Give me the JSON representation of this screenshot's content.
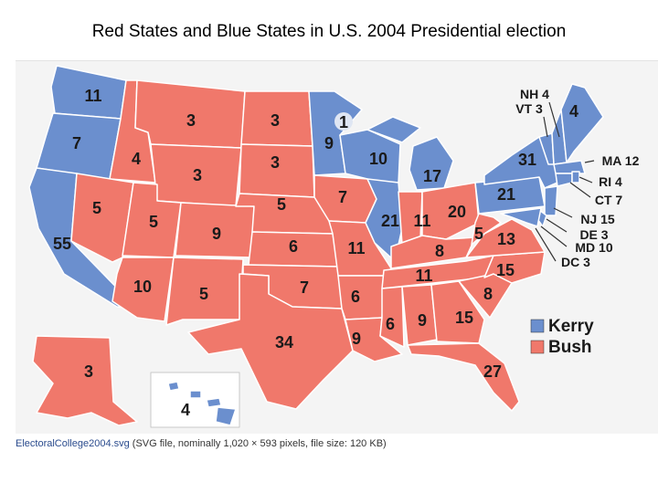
{
  "title": "Red States and Blue States in U.S. 2004 Presidential election",
  "colors": {
    "kerry": "#6b8fce",
    "bush": "#f0786b",
    "border": "#ffffff",
    "label": "#1a1a1a"
  },
  "legend": [
    {
      "label": "Kerry",
      "color": "#6b8fce"
    },
    {
      "label": "Bush",
      "color": "#f0786b"
    }
  ],
  "electoral_votes": {
    "WA": "11",
    "OR": "7",
    "CA": "55",
    "ID": "4",
    "NV": "5",
    "MT": "3",
    "WY": "3",
    "UT": "5",
    "AZ": "10",
    "CO": "9",
    "NM": "5",
    "ND": "3",
    "SD": "3",
    "NE": "5",
    "KS": "6",
    "OK": "7",
    "TX": "34",
    "MN": "9",
    "MN_split": "1",
    "IA": "7",
    "MO": "11",
    "AR": "6",
    "LA": "9",
    "WI": "10",
    "IL": "21",
    "MI": "17",
    "IN": "11",
    "OH": "20",
    "KY": "8",
    "TN": "11",
    "MS": "6",
    "AL": "9",
    "GA": "15",
    "FL": "27",
    "SC": "8",
    "NC": "15",
    "VA": "13",
    "WV": "5",
    "PA": "21",
    "NY": "31",
    "ME": "4",
    "AK": "3",
    "HI": "4"
  },
  "callouts": [
    "NH 4",
    "VT 3",
    "MA 12",
    "RI 4",
    "CT 7",
    "NJ 15",
    "DE 3",
    "MD 10",
    "DC 3"
  ],
  "caption": {
    "link": "ElectoralCollege2004.svg",
    "text": " (SVG file, nominally 1,020 × 593 pixels, file size: 120 KB)"
  }
}
